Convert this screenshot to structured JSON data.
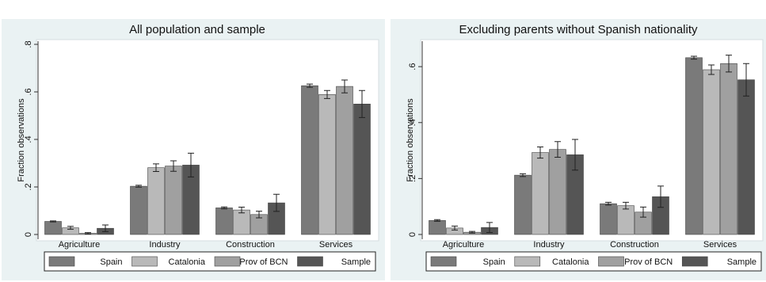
{
  "chart_data": [
    {
      "type": "bar",
      "title": "All population and sample",
      "ylabel": "Fraction observations",
      "ylim": [
        0,
        0.8
      ],
      "yticks": [
        {
          "value": 0,
          "label": "0"
        },
        {
          "value": 0.2,
          "label": ".2"
        },
        {
          "value": 0.4,
          "label": ".4"
        },
        {
          "value": 0.6,
          "label": ".6"
        },
        {
          "value": 0.8,
          "label": ".8"
        }
      ],
      "categories": [
        "Agriculture",
        "Industry",
        "Construction",
        "Services"
      ],
      "series": [
        {
          "name": "Spain",
          "color": "#7a7a7a",
          "values": [
            0.055,
            0.203,
            0.112,
            0.626
          ],
          "errors": [
            0.002,
            0.004,
            0.004,
            0.007
          ]
        },
        {
          "name": "Catalonia",
          "color": "#b9b9b9",
          "values": [
            0.028,
            0.281,
            0.103,
            0.589
          ],
          "errors": [
            0.006,
            0.016,
            0.012,
            0.017
          ]
        },
        {
          "name": "Prov of BCN",
          "color": "#a0a0a0",
          "values": [
            0.005,
            0.288,
            0.084,
            0.623
          ],
          "errors": [
            0.003,
            0.022,
            0.014,
            0.027
          ]
        },
        {
          "name": "Sample",
          "color": "#555555",
          "values": [
            0.026,
            0.292,
            0.133,
            0.549
          ],
          "errors": [
            0.014,
            0.05,
            0.036,
            0.057
          ]
        }
      ],
      "legend_position": "bottom"
    },
    {
      "type": "bar",
      "title": "Excluding parents without Spanish nationality",
      "ylabel": "Fraction observations",
      "ylim": [
        0,
        0.64
      ],
      "yticks": [
        {
          "value": 0,
          "label": "0"
        },
        {
          "value": 0.2,
          "label": ".2"
        },
        {
          "value": 0.4,
          "label": ".4"
        },
        {
          "value": 0.6,
          "label": ".6"
        }
      ],
      "categories": [
        "Agriculture",
        "Industry",
        "Construction",
        "Services"
      ],
      "series": [
        {
          "name": "Spain",
          "color": "#7a7a7a",
          "values": [
            0.05,
            0.212,
            0.11,
            0.632
          ],
          "errors": [
            0.003,
            0.005,
            0.005,
            0.005
          ]
        },
        {
          "name": "Catalonia",
          "color": "#b9b9b9",
          "values": [
            0.023,
            0.293,
            0.103,
            0.589
          ],
          "errors": [
            0.007,
            0.02,
            0.012,
            0.017
          ]
        },
        {
          "name": "Prov of BCN",
          "color": "#a0a0a0",
          "values": [
            0.008,
            0.304,
            0.08,
            0.611
          ],
          "errors": [
            0.003,
            0.028,
            0.018,
            0.03
          ]
        },
        {
          "name": "Sample",
          "color": "#555555",
          "values": [
            0.025,
            0.285,
            0.135,
            0.553
          ],
          "errors": [
            0.018,
            0.055,
            0.038,
            0.058
          ]
        }
      ],
      "legend_position": "bottom"
    }
  ]
}
